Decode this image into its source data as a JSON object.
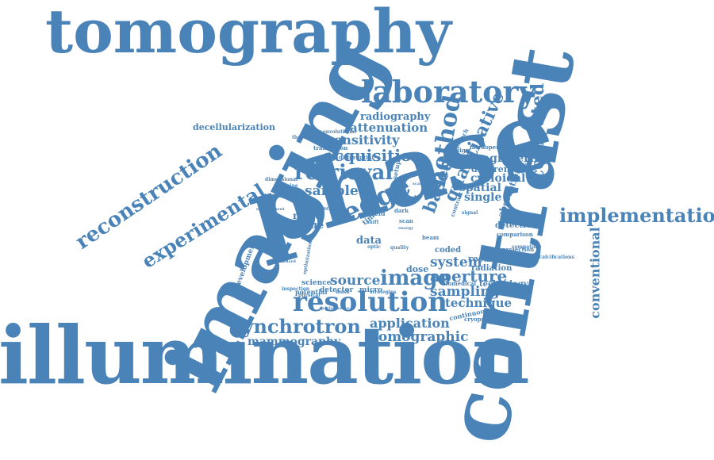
{
  "wordcloud": {
    "color": "#4a83b8",
    "words": {
      "tomography": "tomography",
      "illumination": "illumination",
      "phase": "phase",
      "imaging": "imaging",
      "contrast": "contrast",
      "laboratory": "laboratory",
      "reconstruction": "reconstruction",
      "experimental": "experimental",
      "resolution": "resolution",
      "synchrotron": "synchrotron",
      "implementation": "implementation",
      "retrieval": "retrieval",
      "acquisition": "acquisition",
      "sensitivity": "sensitivity",
      "attenuation": "attenuation",
      "radiography": "radiography",
      "edge": "edge",
      "method": "method",
      "based": "based",
      "quantitative": "quantitative",
      "computed": "computed",
      "conventional": "conventional",
      "sample": "sample",
      "image": "image",
      "source": "source",
      "aperture": "aperture",
      "system": "system",
      "sampling": "sampling",
      "technique": "technique",
      "application": "application",
      "tomographic": "tomographic",
      "mammography": "mammography",
      "decellularization": "decellularization",
      "engineering": "engineering",
      "cycloidal": "cycloidal",
      "spatial": "spatial",
      "single": "single",
      "different": "different",
      "intraoperative": "intraoperative",
      "absorption": "absorption",
      "detection": "detection",
      "comparison": "comparison",
      "result": "result",
      "radiation": "radiation",
      "technology": "technology",
      "dose": "dose",
      "coded": "coded",
      "noise": "noise",
      "tissue": "tissue",
      "data": "data",
      "analysis": "analysis",
      "development": "development",
      "potential": "potential",
      "detector": "detector",
      "micro": "micro",
      "science": "science",
      "continuous": "continuous",
      "cryopreservation": "cryopreservation",
      "microcalcifications": "microcalcifications",
      "translation": "translation",
      "convolutional": "convolutional",
      "theoretical": "theoretical",
      "scheme": "scheme",
      "differential": "differential",
      "setup": "setup",
      "time": "time",
      "field": "field",
      "dark": "dark",
      "scan": "scan",
      "approach": "approach",
      "design": "design",
      "material": "material",
      "projection": "projection",
      "biomedical": "biomedical",
      "dimensional": "dimensional",
      "environment": "environment",
      "medicine": "medicine",
      "model": "model",
      "optic": "optic",
      "beam": "beam",
      "quality": "quality",
      "optimization": "optimization",
      "strategies": "strategies",
      "physical": "physical",
      "inspection": "inspection",
      "performance": "performance",
      "standard": "standard",
      "compatible": "compatible",
      "phantom": "phantom",
      "scattering": "scattering",
      "mask": "mask",
      "shift": "shift",
      "energy": "energy",
      "signal": "signal",
      "contrast_small": "contrast"
    }
  }
}
